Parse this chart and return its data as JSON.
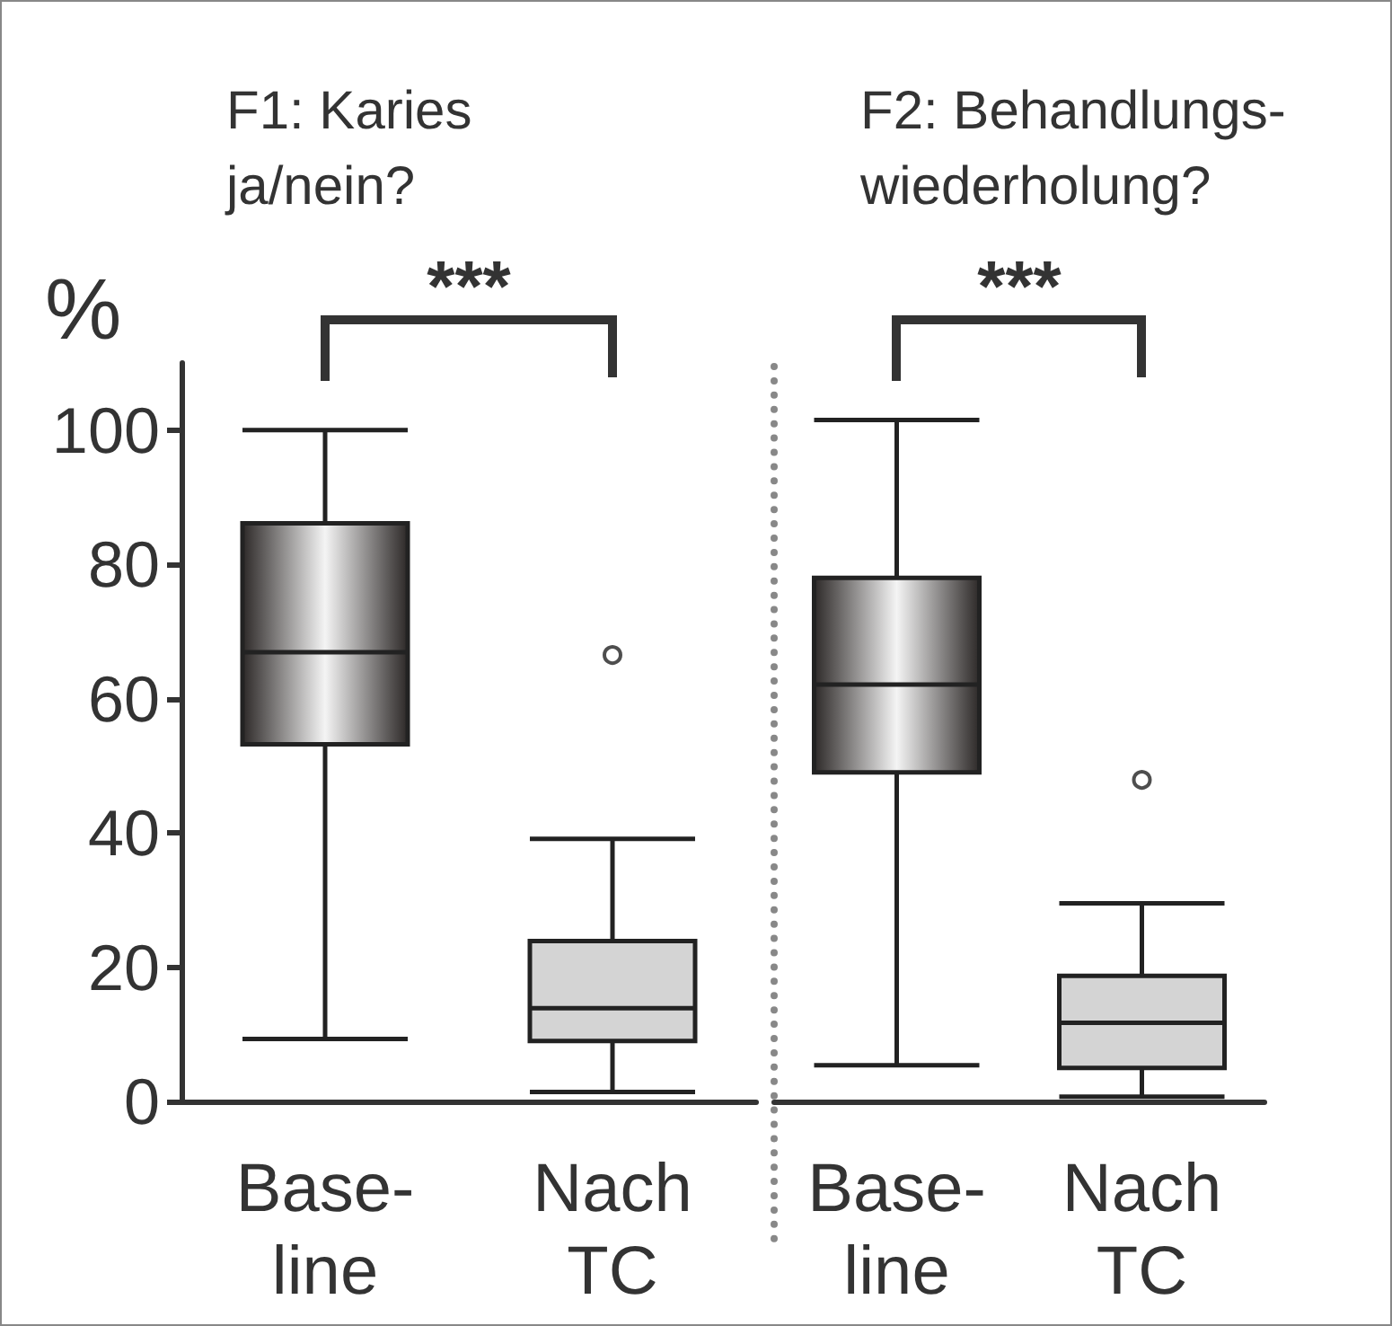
{
  "chart_data": [
    {
      "type": "box",
      "title": "F1: Karies\nja/nein?",
      "ylabel": "%",
      "categories": [
        "Base-\nline",
        "Nach\nTC"
      ],
      "boxes": [
        {
          "low": 9.3,
          "q1": 53.2,
          "median": 66.9,
          "q3": 86.1,
          "high": 100
        },
        {
          "low": 1.4,
          "q1": 9,
          "median": 13.9,
          "q3": 23.9,
          "high": 39.1,
          "outliers": [
            66.5
          ]
        }
      ],
      "colors": [
        "#2d2928",
        "#d4d4d4"
      ],
      "ylim": [
        0,
        110
      ],
      "yticks": [
        0,
        20,
        40,
        60,
        80,
        100
      ],
      "grid": false,
      "annotations": [
        "***"
      ]
    },
    {
      "type": "box",
      "title": "F2: Behandlungs-\nwiederholung?",
      "categories": [
        "Base-\nline",
        "Nach\nTC"
      ],
      "boxes": [
        {
          "low": 5.4,
          "q1": 49,
          "median": 62.1,
          "q3": 78,
          "high": 101.5
        },
        {
          "low": 0.7,
          "q1": 5,
          "median": 11.7,
          "q3": 18.7,
          "high": 29.5,
          "outliers": [
            47.9
          ]
        }
      ],
      "colors": [
        "#2d2928",
        "#d4d4d4"
      ],
      "ylim": [
        0,
        110
      ],
      "tick_labels": "x",
      "grid": false,
      "annotations": [
        "***"
      ]
    }
  ]
}
